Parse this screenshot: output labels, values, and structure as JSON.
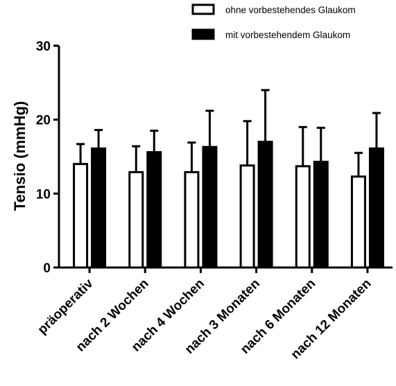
{
  "chart_data": {
    "type": "bar",
    "title": "",
    "xlabel": "",
    "ylabel": "Tensio (mmHg)",
    "ylim": [
      0,
      30
    ],
    "yticks": [
      "0",
      "10",
      "20",
      "30"
    ],
    "categories": [
      "präoperativ",
      "nach 2 Wochen",
      "nach 4 Wochen",
      "nach 3 Monaten",
      "nach 6 Monaten",
      "nach 12 Monaten"
    ],
    "series": [
      {
        "name": "ohne vorbestehendes Glaukom",
        "fill": "#ffffff",
        "values": [
          14.0,
          12.9,
          12.9,
          13.8,
          13.7,
          12.3
        ],
        "error": [
          2.7,
          3.5,
          4.0,
          6.0,
          5.3,
          3.2
        ]
      },
      {
        "name": "mit vorbestehendem Glaukom",
        "fill": "#000000",
        "values": [
          16.1,
          15.6,
          16.3,
          17.0,
          14.3,
          16.1
        ],
        "error": [
          2.5,
          2.9,
          4.9,
          7.0,
          4.6,
          4.8
        ]
      }
    ],
    "legend_position": "top-right",
    "grid": false
  }
}
